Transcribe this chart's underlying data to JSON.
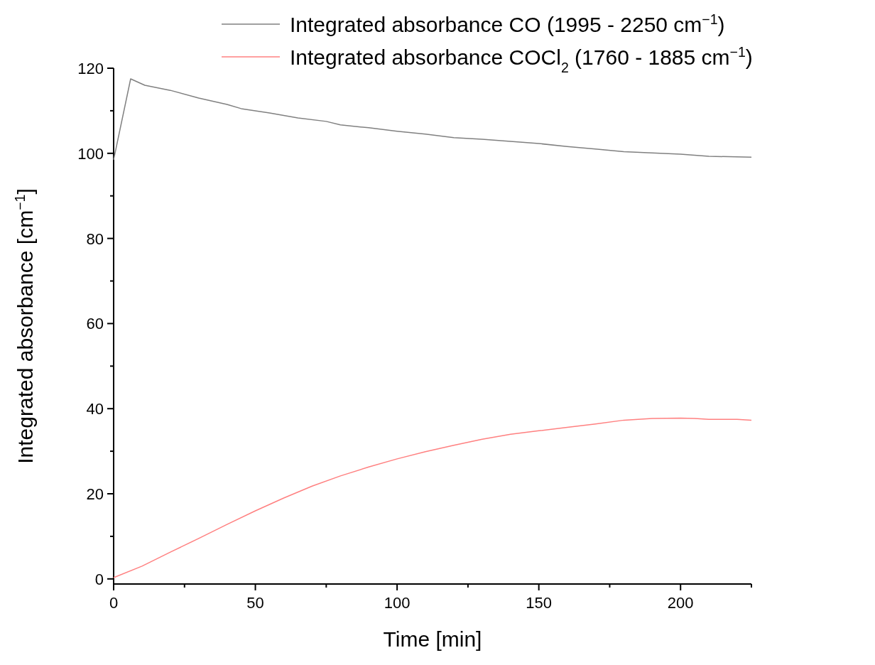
{
  "chart_data": {
    "type": "line",
    "xlabel": "Time [min]",
    "ylabel": "Integrated absorbance [cm$^{−1}$]",
    "legend": "top right",
    "grid": false,
    "marker": "none",
    "line_style": "solid",
    "xlim": [
      0,
      225
    ],
    "ylim": [
      -1.2,
      120
    ],
    "xticks": [
      0,
      {
        "value": 25,
        "label": null
      },
      50,
      {
        "value": 75,
        "label": null
      },
      100,
      {
        "value": 125,
        "label": null
      },
      150,
      {
        "value": 175,
        "label": null
      },
      200,
      {
        "value": 225,
        "label": null
      }
    ],
    "yticks": [
      0,
      {
        "value": 10,
        "label": null
      },
      20,
      {
        "value": 30,
        "label": null
      },
      40,
      {
        "value": 50,
        "label": null
      },
      60,
      {
        "value": 70,
        "label": null
      },
      80,
      {
        "value": 90,
        "label": null
      },
      100,
      {
        "value": 110,
        "label": null
      },
      120
    ],
    "series": [
      {
        "name": "Integrated absorbance CO (1995 - 2250 cm$^{−1}$)",
        "color": "#808080",
        "x": [
          0,
          6,
          11,
          20,
          30,
          40,
          45,
          55,
          65,
          75,
          80,
          90,
          100,
          110,
          120,
          130,
          140,
          150,
          160,
          170,
          180,
          190,
          200,
          210,
          225
        ],
        "values": [
          98.5,
          117.5,
          116,
          114.8,
          113,
          111.5,
          110.5,
          109.5,
          108.3,
          107.5,
          106.7,
          106,
          105.2,
          104.5,
          103.7,
          103.3,
          102.8,
          102.3,
          101.6,
          101,
          100.4,
          100.1,
          99.8,
          99.3,
          99.1
        ]
      },
      {
        "name": "Integrated absorbance COCl$_{2}$ (1760 - 1885 cm$^{−1}$)",
        "color": "#ff8080",
        "x": [
          0,
          10,
          20,
          30,
          40,
          50,
          60,
          70,
          80,
          90,
          100,
          110,
          120,
          130,
          140,
          150,
          160,
          170,
          180,
          190,
          200,
          205,
          210,
          220,
          225
        ],
        "values": [
          0.3,
          3,
          6.3,
          9.5,
          12.8,
          16,
          19,
          21.8,
          24.2,
          26.3,
          28.2,
          29.9,
          31.4,
          32.8,
          34,
          34.8,
          35.6,
          36.4,
          37.3,
          37.7,
          37.8,
          37.7,
          37.5,
          37.5,
          37.3
        ]
      }
    ]
  }
}
